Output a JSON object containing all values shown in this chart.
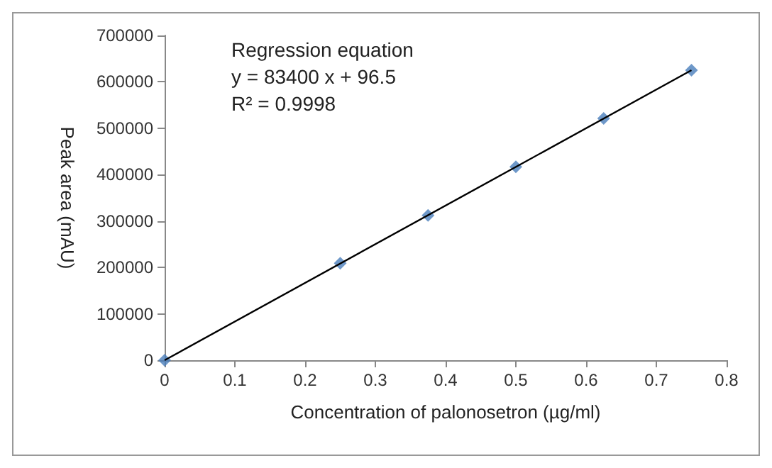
{
  "chart_data": {
    "type": "scatter",
    "xlabel": "Concentration of palonosetron (µg/ml)",
    "ylabel": "Peak area (mAU)",
    "annotations": [
      "Regression equation",
      "y = 83400 x + 96.5",
      "R² = 0.9998"
    ],
    "xlim": [
      0,
      0.8
    ],
    "xticks": [
      0,
      0.1,
      0.2,
      0.3,
      0.4,
      0.5,
      0.6,
      0.7,
      0.8
    ],
    "ylim": [
      0,
      700000
    ],
    "yticks": [
      0,
      100000,
      200000,
      300000,
      400000,
      500000,
      600000,
      700000
    ],
    "grid": false,
    "marker": "diamond",
    "series": [
      {
        "color": "#4a7ebb",
        "x": [
          0,
          0.25,
          0.375,
          0.5,
          0.625,
          0.75
        ],
        "values": [
          0,
          209000,
          312000,
          417000,
          521000,
          625000
        ]
      },
      {
        "type": "line",
        "color": "#000000",
        "line_style": "solid",
        "marker": "none",
        "x": [
          0,
          0.75
        ],
        "values": [
          0,
          625000
        ]
      }
    ]
  }
}
